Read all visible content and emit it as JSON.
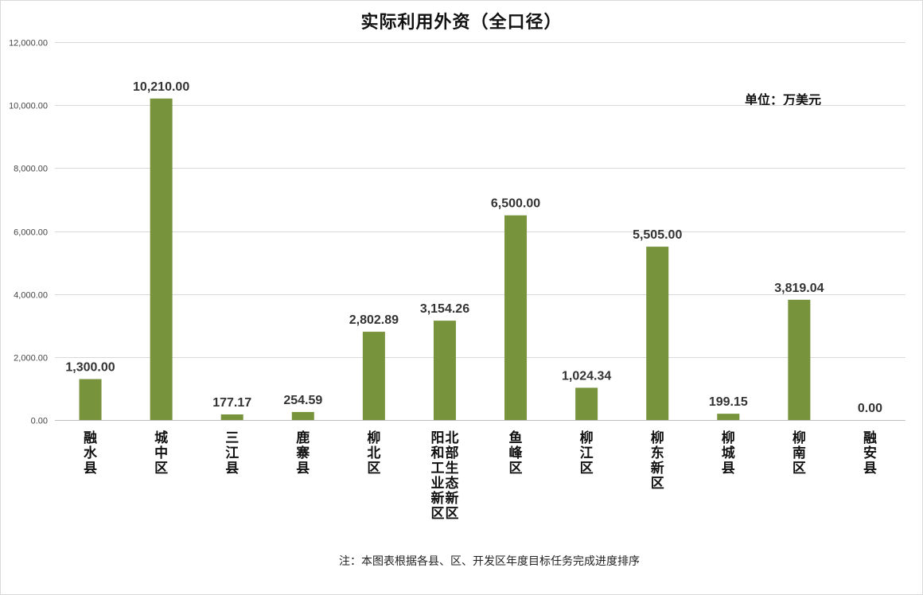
{
  "chart_data": {
    "type": "bar",
    "title": "实际利用外资（全口径）",
    "unit": "单位：万美元",
    "note": "注：本图表根据各县、区、开发区年度目标任务完成进度排序",
    "categories": [
      "融水县",
      "城中区",
      "三江县",
      "鹿寨县",
      "柳北区",
      "北部生态新区阳和工业新区",
      "鱼峰区",
      "柳江区",
      "柳东新区",
      "柳城县",
      "柳南区",
      "融安县"
    ],
    "category_label_columns": [
      [
        "融水县"
      ],
      [
        "城中区"
      ],
      [
        "三江县"
      ],
      [
        "鹿寨县"
      ],
      [
        "柳北区"
      ],
      [
        "阳和工业新区",
        "北部生态新区"
      ],
      [
        "鱼峰区"
      ],
      [
        "柳江区"
      ],
      [
        "柳东新区"
      ],
      [
        "柳城县"
      ],
      [
        "柳南区"
      ],
      [
        "融安县"
      ]
    ],
    "values": [
      1300.0,
      10210.0,
      177.17,
      254.59,
      2802.89,
      3154.26,
      6500.0,
      1024.34,
      5505.0,
      199.15,
      3819.04,
      0.0
    ],
    "value_labels": [
      "1,300.00",
      "10,210.00",
      "177.17",
      "254.59",
      "2,802.89",
      "3,154.26",
      "6,500.00",
      "1,024.34",
      "5,505.00",
      "199.15",
      "3,819.04",
      "0.00"
    ],
    "ylim": [
      0,
      12000
    ],
    "yticks": [
      0,
      2000,
      4000,
      6000,
      8000,
      10000,
      12000
    ],
    "ytick_labels": [
      "0.00",
      "2,000.00",
      "4,000.00",
      "6,000.00",
      "8,000.00",
      "10,000.00",
      "12,000.00"
    ],
    "grid": true,
    "bar_color": "#77933c",
    "grid_color": "#d9d9d9"
  }
}
